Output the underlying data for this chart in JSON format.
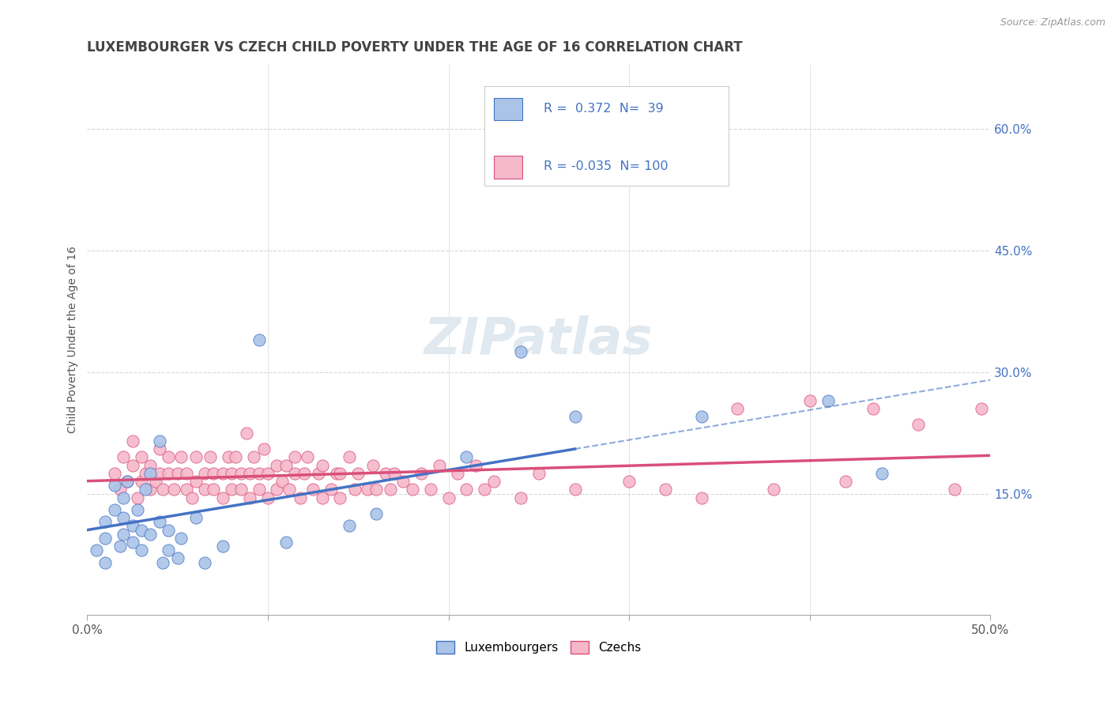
{
  "title": "LUXEMBOURGER VS CZECH CHILD POVERTY UNDER THE AGE OF 16 CORRELATION CHART",
  "source": "Source: ZipAtlas.com",
  "ylabel": "Child Poverty Under the Age of 16",
  "ytick_vals": [
    0.15,
    0.3,
    0.45,
    0.6
  ],
  "ytick_labels": [
    "15.0%",
    "30.0%",
    "45.0%",
    "60.0%"
  ],
  "xlim": [
    0.0,
    0.5
  ],
  "ylim": [
    0.0,
    0.68
  ],
  "R_lux": 0.372,
  "N_lux": 39,
  "R_czech": -0.035,
  "N_czech": 100,
  "legend_lux": "Luxembourgers",
  "legend_czech": "Czechs",
  "color_lux": "#aac4e8",
  "color_czech": "#f5b8cb",
  "line_color_lux": "#4472c4",
  "line_color_czech": "#d94f7a",
  "lux_scatter": [
    [
      0.005,
      0.08
    ],
    [
      0.01,
      0.065
    ],
    [
      0.01,
      0.095
    ],
    [
      0.01,
      0.115
    ],
    [
      0.015,
      0.13
    ],
    [
      0.015,
      0.16
    ],
    [
      0.018,
      0.085
    ],
    [
      0.02,
      0.1
    ],
    [
      0.02,
      0.12
    ],
    [
      0.02,
      0.145
    ],
    [
      0.022,
      0.165
    ],
    [
      0.025,
      0.09
    ],
    [
      0.025,
      0.11
    ],
    [
      0.028,
      0.13
    ],
    [
      0.03,
      0.08
    ],
    [
      0.03,
      0.105
    ],
    [
      0.032,
      0.155
    ],
    [
      0.035,
      0.1
    ],
    [
      0.035,
      0.175
    ],
    [
      0.04,
      0.115
    ],
    [
      0.04,
      0.215
    ],
    [
      0.042,
      0.065
    ],
    [
      0.045,
      0.08
    ],
    [
      0.045,
      0.105
    ],
    [
      0.05,
      0.07
    ],
    [
      0.052,
      0.095
    ],
    [
      0.06,
      0.12
    ],
    [
      0.065,
      0.065
    ],
    [
      0.075,
      0.085
    ],
    [
      0.095,
      0.34
    ],
    [
      0.11,
      0.09
    ],
    [
      0.145,
      0.11
    ],
    [
      0.16,
      0.125
    ],
    [
      0.21,
      0.195
    ],
    [
      0.24,
      0.325
    ],
    [
      0.27,
      0.245
    ],
    [
      0.34,
      0.245
    ],
    [
      0.41,
      0.265
    ],
    [
      0.44,
      0.175
    ]
  ],
  "czech_scatter": [
    [
      0.015,
      0.175
    ],
    [
      0.018,
      0.155
    ],
    [
      0.02,
      0.195
    ],
    [
      0.022,
      0.165
    ],
    [
      0.025,
      0.185
    ],
    [
      0.025,
      0.215
    ],
    [
      0.028,
      0.145
    ],
    [
      0.03,
      0.165
    ],
    [
      0.03,
      0.195
    ],
    [
      0.032,
      0.175
    ],
    [
      0.035,
      0.155
    ],
    [
      0.035,
      0.185
    ],
    [
      0.038,
      0.165
    ],
    [
      0.04,
      0.175
    ],
    [
      0.04,
      0.205
    ],
    [
      0.042,
      0.155
    ],
    [
      0.045,
      0.175
    ],
    [
      0.045,
      0.195
    ],
    [
      0.048,
      0.155
    ],
    [
      0.05,
      0.175
    ],
    [
      0.052,
      0.195
    ],
    [
      0.055,
      0.155
    ],
    [
      0.055,
      0.175
    ],
    [
      0.058,
      0.145
    ],
    [
      0.06,
      0.165
    ],
    [
      0.06,
      0.195
    ],
    [
      0.065,
      0.155
    ],
    [
      0.065,
      0.175
    ],
    [
      0.068,
      0.195
    ],
    [
      0.07,
      0.155
    ],
    [
      0.07,
      0.175
    ],
    [
      0.075,
      0.145
    ],
    [
      0.075,
      0.175
    ],
    [
      0.078,
      0.195
    ],
    [
      0.08,
      0.155
    ],
    [
      0.08,
      0.175
    ],
    [
      0.082,
      0.195
    ],
    [
      0.085,
      0.155
    ],
    [
      0.085,
      0.175
    ],
    [
      0.088,
      0.225
    ],
    [
      0.09,
      0.145
    ],
    [
      0.09,
      0.175
    ],
    [
      0.092,
      0.195
    ],
    [
      0.095,
      0.155
    ],
    [
      0.095,
      0.175
    ],
    [
      0.098,
      0.205
    ],
    [
      0.1,
      0.145
    ],
    [
      0.1,
      0.175
    ],
    [
      0.105,
      0.155
    ],
    [
      0.105,
      0.185
    ],
    [
      0.108,
      0.165
    ],
    [
      0.11,
      0.185
    ],
    [
      0.112,
      0.155
    ],
    [
      0.115,
      0.175
    ],
    [
      0.115,
      0.195
    ],
    [
      0.118,
      0.145
    ],
    [
      0.12,
      0.175
    ],
    [
      0.122,
      0.195
    ],
    [
      0.125,
      0.155
    ],
    [
      0.128,
      0.175
    ],
    [
      0.13,
      0.145
    ],
    [
      0.13,
      0.185
    ],
    [
      0.135,
      0.155
    ],
    [
      0.138,
      0.175
    ],
    [
      0.14,
      0.145
    ],
    [
      0.14,
      0.175
    ],
    [
      0.145,
      0.195
    ],
    [
      0.148,
      0.155
    ],
    [
      0.15,
      0.175
    ],
    [
      0.155,
      0.155
    ],
    [
      0.158,
      0.185
    ],
    [
      0.16,
      0.155
    ],
    [
      0.165,
      0.175
    ],
    [
      0.168,
      0.155
    ],
    [
      0.17,
      0.175
    ],
    [
      0.175,
      0.165
    ],
    [
      0.18,
      0.155
    ],
    [
      0.185,
      0.175
    ],
    [
      0.19,
      0.155
    ],
    [
      0.195,
      0.185
    ],
    [
      0.2,
      0.145
    ],
    [
      0.205,
      0.175
    ],
    [
      0.21,
      0.155
    ],
    [
      0.215,
      0.185
    ],
    [
      0.22,
      0.155
    ],
    [
      0.225,
      0.165
    ],
    [
      0.24,
      0.145
    ],
    [
      0.25,
      0.175
    ],
    [
      0.27,
      0.155
    ],
    [
      0.3,
      0.165
    ],
    [
      0.32,
      0.155
    ],
    [
      0.34,
      0.145
    ],
    [
      0.36,
      0.255
    ],
    [
      0.38,
      0.155
    ],
    [
      0.4,
      0.265
    ],
    [
      0.42,
      0.165
    ],
    [
      0.435,
      0.255
    ],
    [
      0.46,
      0.235
    ],
    [
      0.48,
      0.155
    ],
    [
      0.495,
      0.255
    ]
  ],
  "background_color": "#ffffff",
  "grid_color": "#d8d8d8",
  "title_color": "#444444",
  "axis_label_color": "#555555",
  "right_tick_color": "#4472c4"
}
